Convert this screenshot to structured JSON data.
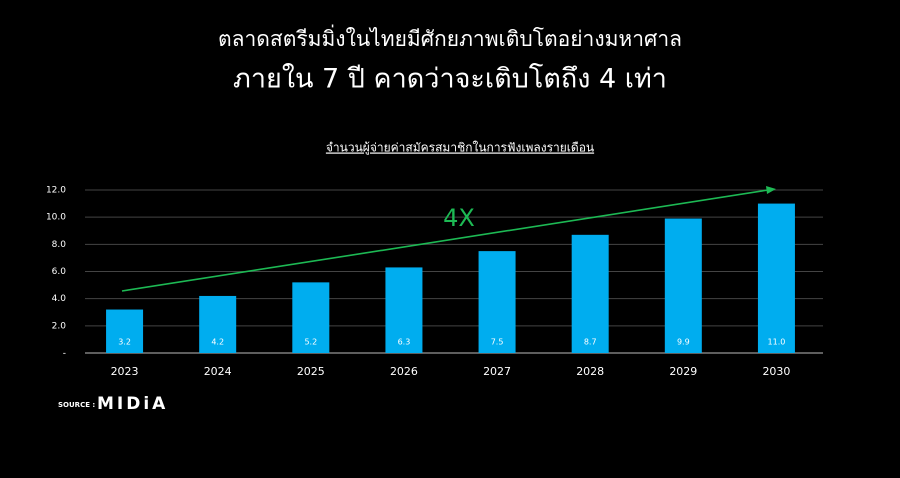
{
  "chart_data": {
    "type": "bar",
    "title": "ตลาดสตรีมมิ่งในไทยมีศักยภาพเติบโตอย่างมหาศาล",
    "subtitle": "ภายใน 7 ปี คาดว่าจะเติบโตถึง 4 เท่า",
    "caption": "จำนวนผู้จ่ายค่าสมัครสมาชิกในการฟังเพลงรายเดือน",
    "annotation": "4X",
    "categories": [
      "2023",
      "2024",
      "2025",
      "2026",
      "2027",
      "2028",
      "2029",
      "2030"
    ],
    "values": [
      3.2,
      4.2,
      5.2,
      6.3,
      7.5,
      8.7,
      9.9,
      11.0
    ],
    "value_labels": [
      "3.2",
      "4.2",
      "5.2",
      "6.3",
      "7.5",
      "8.7",
      "9.9",
      "11.0"
    ],
    "color": "#00adef",
    "ylim": [
      0,
      12
    ],
    "yticks": [
      {
        "value": 0,
        "label": "-"
      },
      {
        "value": 2,
        "label": "2.0"
      },
      {
        "value": 4,
        "label": "4.0"
      },
      {
        "value": 6,
        "label": "6.0"
      },
      {
        "value": 8,
        "label": "8.0"
      },
      {
        "value": 10,
        "label": "10.0"
      },
      {
        "value": 12,
        "label": "12.0"
      }
    ],
    "grid": true
  },
  "source": {
    "label": "SOURCE :",
    "name": "MIDiA"
  }
}
